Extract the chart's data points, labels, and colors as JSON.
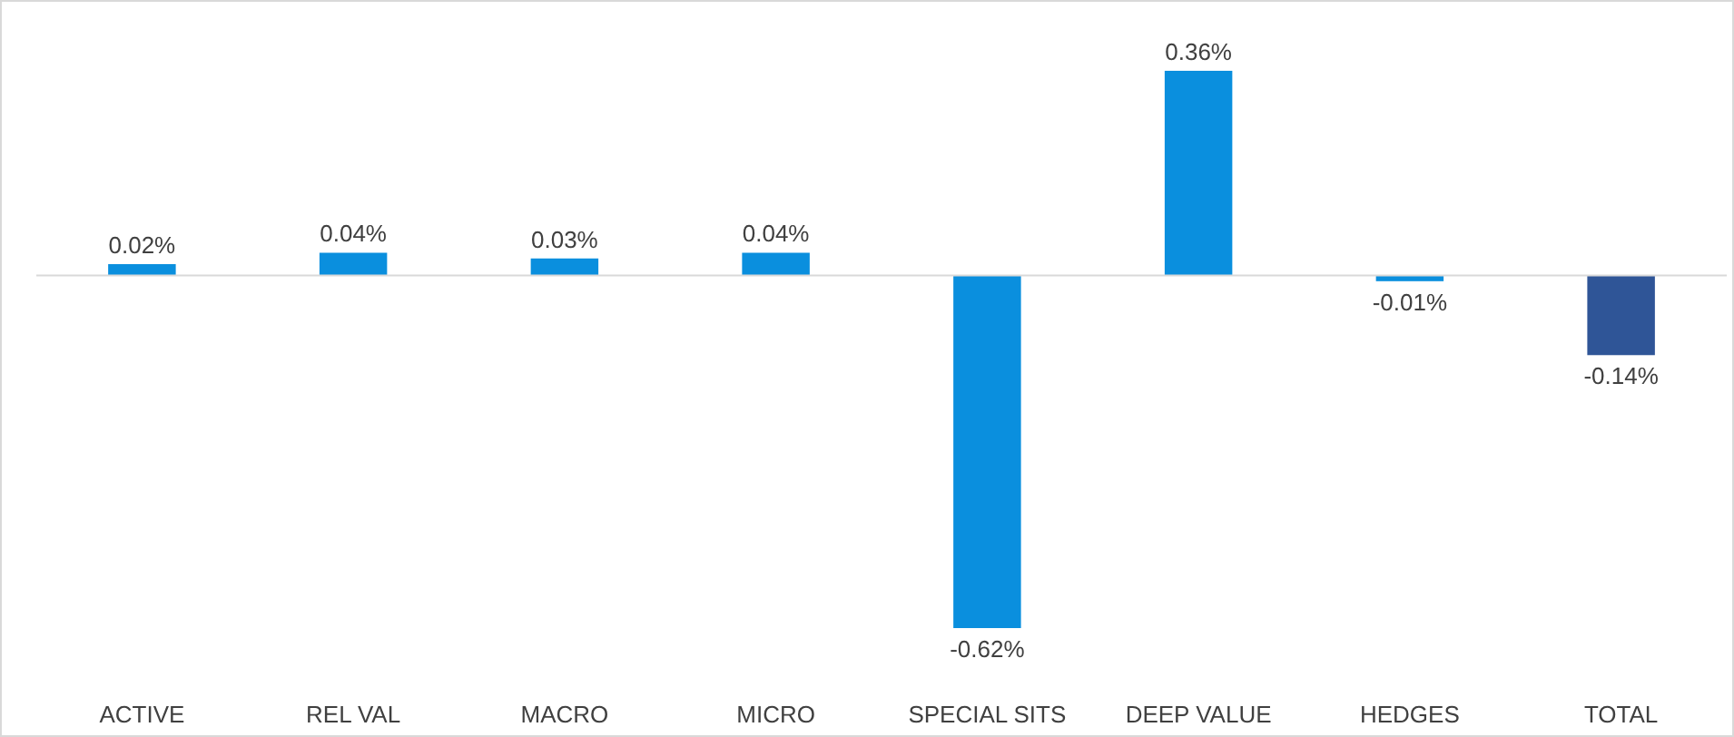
{
  "chart_data": {
    "type": "bar",
    "categories": [
      "ACTIVE",
      "REL VAL",
      "MACRO",
      "MICRO",
      "SPECIAL SITS",
      "DEEP VALUE",
      "HEDGES",
      "TOTAL"
    ],
    "values": [
      0.02,
      0.04,
      0.03,
      0.04,
      -0.62,
      0.36,
      -0.01,
      -0.14
    ],
    "value_labels": [
      "0.02%",
      "0.04%",
      "0.03%",
      "0.04%",
      "-0.62%",
      "0.36%",
      "-0.01%",
      "-0.14%"
    ],
    "colors": [
      "#0a8fde",
      "#0a8fde",
      "#0a8fde",
      "#0a8fde",
      "#0a8fde",
      "#0a8fde",
      "#0a8fde",
      "#2f5597"
    ],
    "data_labels": true
  }
}
